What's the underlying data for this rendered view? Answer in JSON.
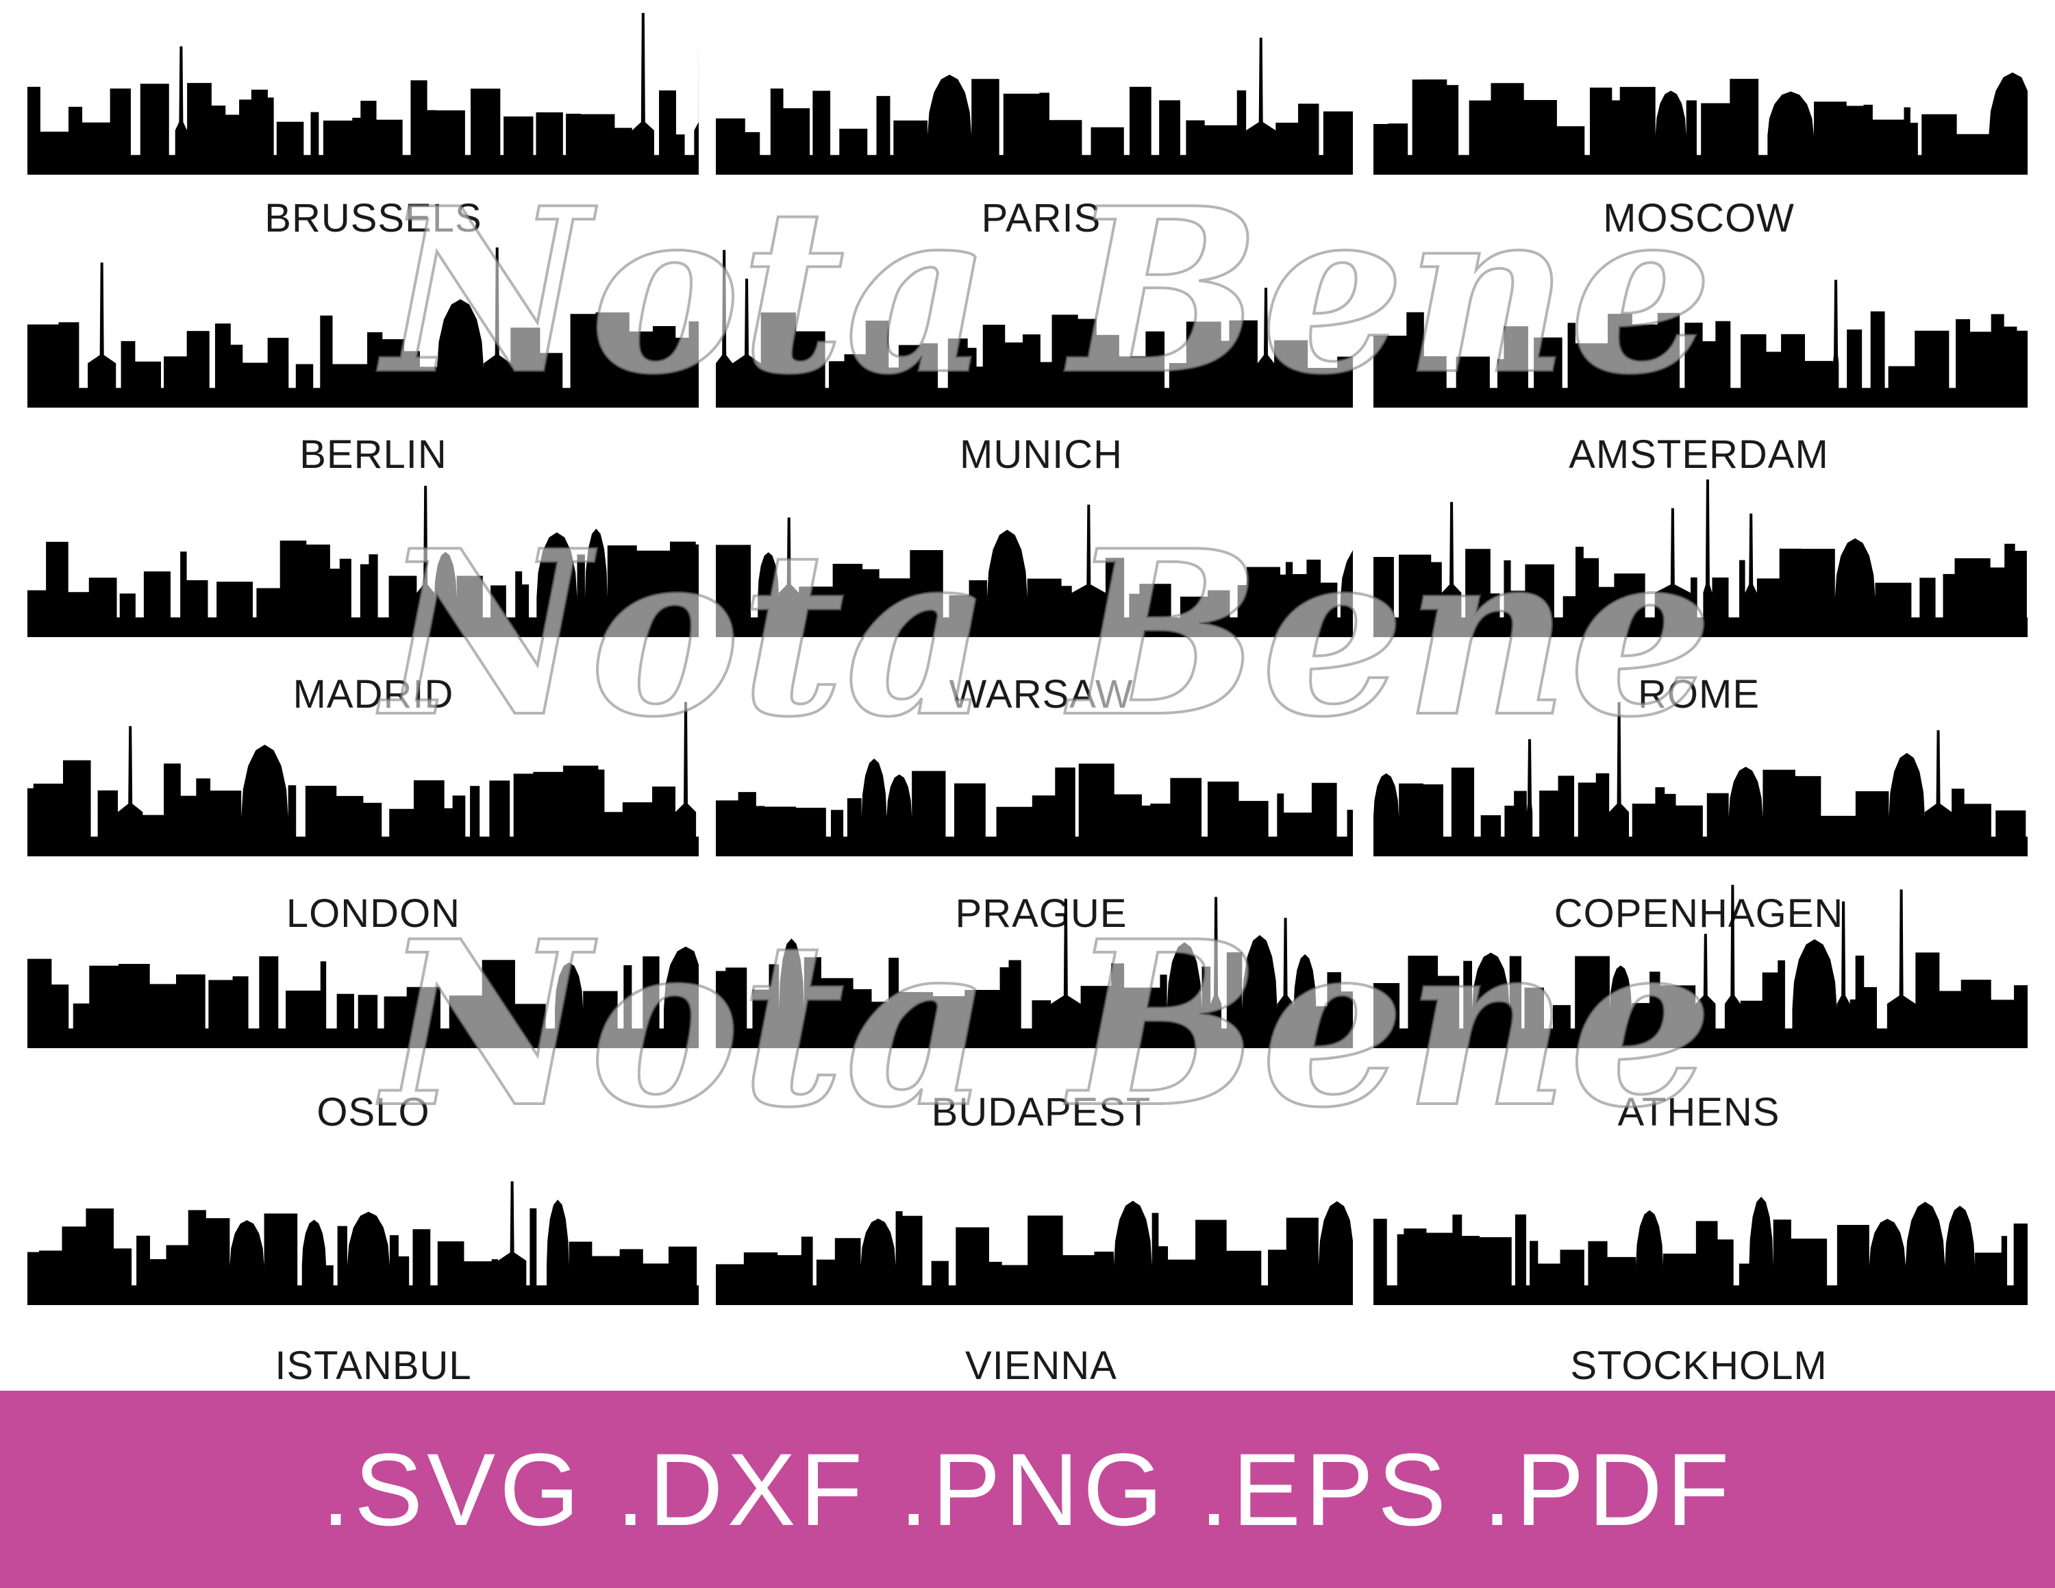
{
  "cities": [
    "BRUSSELS",
    "PARIS",
    "MOSCOW",
    "BERLIN",
    "MUNICH",
    "AMSTERDAM",
    "MADRID",
    "WARSAW",
    "ROME",
    "LONDON",
    "PRAGUE",
    "COPENHAGEN",
    "OSLO",
    "BUDAPEST",
    "ATHENS",
    "ISTANBUL",
    "VIENNA",
    "STOCKHOLM"
  ],
  "watermark": "Nota Bene",
  "banner": {
    "formats": ".SVG .DXF .PNG .EPS .PDF",
    "color": "#c34b9a"
  },
  "colors": {
    "silhouette": "#000000",
    "label": "#1a1a1a",
    "background": "#ffffff"
  }
}
